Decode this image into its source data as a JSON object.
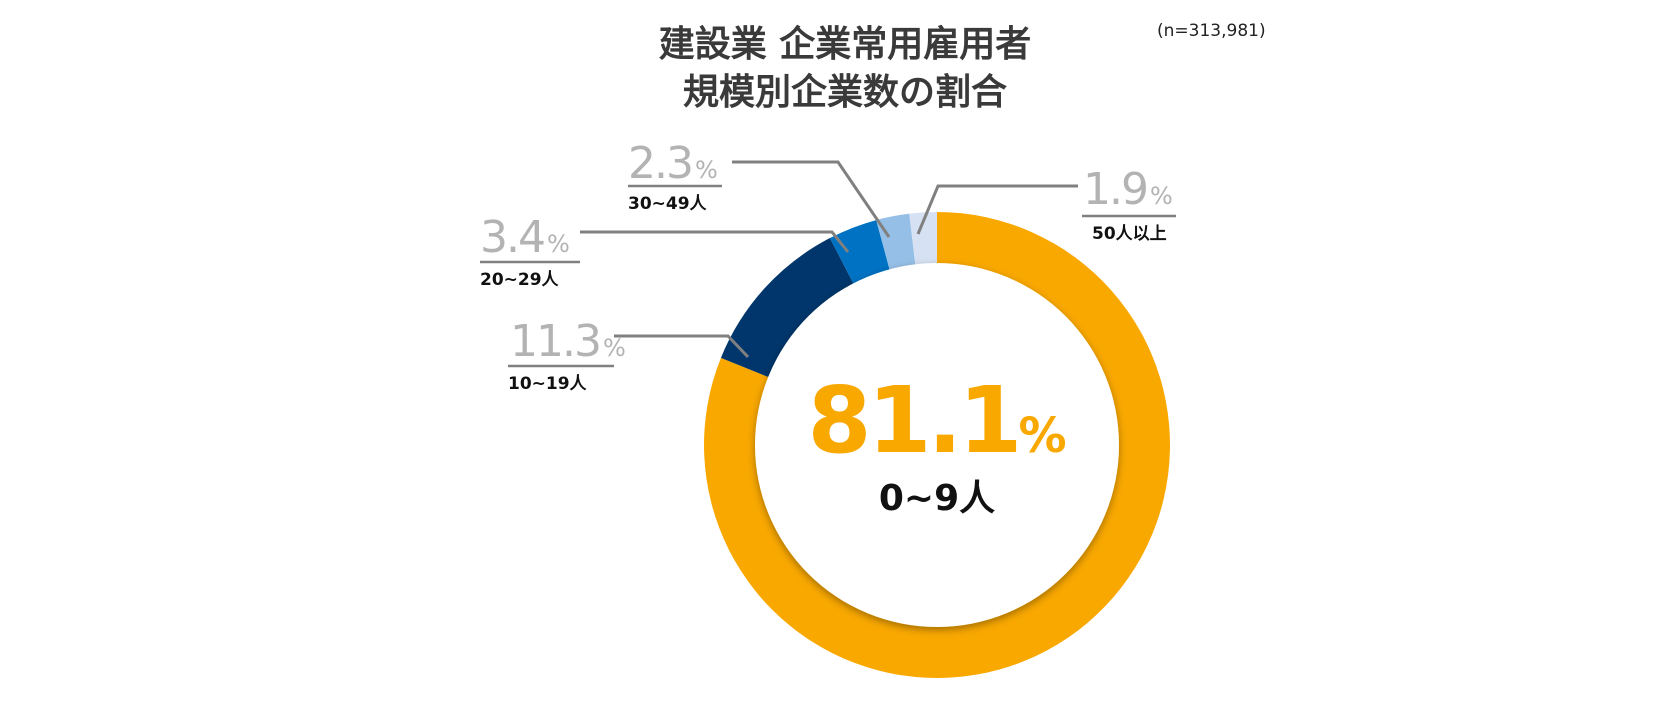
{
  "chart_data": {
    "type": "pie",
    "title_lines": [
      "建設業 企業常用雇用者",
      "規模別企業数の割合"
    ],
    "note": "(n=313,981)",
    "percent_sign": "%",
    "slices": [
      {
        "label": "0~9人",
        "value": 81.1,
        "value_text": "81.1",
        "color": "#F9A800"
      },
      {
        "label": "10~19人",
        "value": 11.3,
        "value_text": "11.3",
        "color": "#00366B"
      },
      {
        "label": "20~29人",
        "value": 3.4,
        "value_text": "3.4",
        "color": "#0072C3"
      },
      {
        "label": "30~49人",
        "value": 2.3,
        "value_text": "2.3",
        "color": "#96BFE7"
      },
      {
        "label": "50人以上",
        "value": 1.9,
        "value_text": "1.9",
        "color": "#D6E2F3"
      }
    ],
    "colors": {
      "title": "#3a3a3a",
      "callout_text": "#b3b3b3",
      "leader_line": "#808080"
    }
  }
}
